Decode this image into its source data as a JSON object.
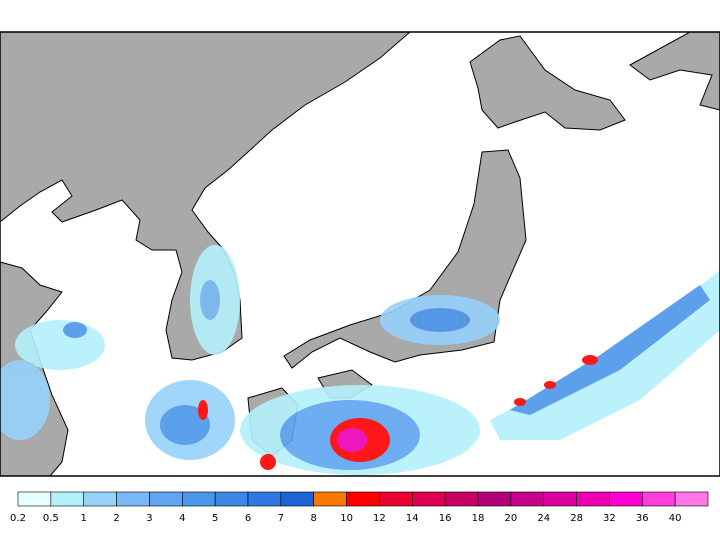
{
  "colorbar": {
    "levels": [
      0.2,
      0.5,
      1,
      2,
      3,
      4,
      5,
      6,
      7,
      8,
      10,
      12,
      14,
      16,
      18,
      20,
      24,
      28,
      32,
      36,
      40
    ],
    "colors": [
      "#e6ffff",
      "#b4f0fa",
      "#96d2fa",
      "#7ab9f5",
      "#5fa5f0",
      "#4b96eb",
      "#3c87e6",
      "#2d78e1",
      "#1e64d7",
      "#fa7800",
      "#ff0000",
      "#eb0032",
      "#dc0050",
      "#c80064",
      "#b40078",
      "#c8008c",
      "#dc00a0",
      "#eb00b4",
      "#ff00d2",
      "#ff3cdc",
      "#ff78e6"
    ]
  }
}
